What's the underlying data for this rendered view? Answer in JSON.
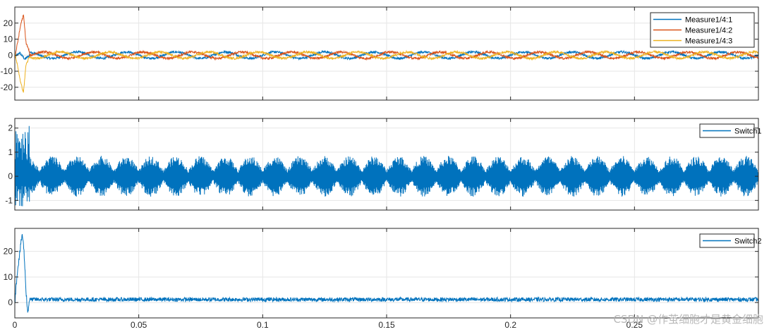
{
  "watermark": "CSDN @作茧细胞才是黄金细胞",
  "chart_data": [
    {
      "type": "line",
      "title": "",
      "xlabel": "",
      "ylabel": "",
      "xlim": [
        0,
        0.3
      ],
      "ylim": [
        -28,
        30
      ],
      "x_ticks": [
        0,
        0.05,
        0.1,
        0.15,
        0.2,
        0.25
      ],
      "x_tick_labels": [],
      "y_ticks": [
        -20,
        -10,
        0,
        10,
        20
      ],
      "y_tick_labels": [
        "-20",
        "-10",
        "0",
        "10",
        "20"
      ],
      "grid": true,
      "legend_position": "top-right",
      "series": [
        {
          "name": "Measure1/4:1",
          "color": "#0072BD",
          "steady": {
            "shape": "sine",
            "amplitude": 2,
            "frequency_hz": 50,
            "phase_deg": 0
          },
          "transient": {
            "t_end": 0.006,
            "x": [
              0,
              0.002,
              0.004,
              0.006
            ],
            "y": [
              -1,
              1.5,
              -2.5,
              0
            ]
          }
        },
        {
          "name": "Measure1/4:2",
          "color": "#D95319",
          "steady": {
            "shape": "sine",
            "amplitude": 2,
            "frequency_hz": 50,
            "phase_deg": 240
          },
          "transient": {
            "t_end": 0.006,
            "x": [
              0,
              0.0025,
              0.0035,
              0.0045,
              0.006
            ],
            "y": [
              -2,
              20,
              25,
              8,
              1.5
            ]
          }
        },
        {
          "name": "Measure1/4:3",
          "color": "#EDB120",
          "steady": {
            "shape": "sine",
            "amplitude": 2,
            "frequency_hz": 50,
            "phase_deg": 120
          },
          "transient": {
            "t_end": 0.006,
            "x": [
              0,
              0.0025,
              0.0035,
              0.0045,
              0.006
            ],
            "y": [
              2,
              -18,
              -23,
              -6,
              -1
            ]
          }
        }
      ]
    },
    {
      "type": "line",
      "title": "",
      "xlabel": "",
      "ylabel": "",
      "xlim": [
        0,
        0.3
      ],
      "ylim": [
        -1.4,
        2.4
      ],
      "x_ticks": [
        0,
        0.05,
        0.1,
        0.15,
        0.2,
        0.25
      ],
      "x_tick_labels": [],
      "y_ticks": [
        -1,
        0,
        1,
        2
      ],
      "y_tick_labels": [
        "-1",
        "0",
        "1",
        "2"
      ],
      "grid": true,
      "legend_position": "top-right",
      "series": [
        {
          "name": "Switch1",
          "color": "#0072BD",
          "steady": {
            "shape": "beat_envelope",
            "carrier_hz": 5000,
            "envelope_period_s": 0.01,
            "peak": 0.85,
            "trough": 0.25
          },
          "transient": {
            "t_end": 0.006,
            "peak": 2.2,
            "trough": -1.25
          }
        }
      ]
    },
    {
      "type": "line",
      "title": "",
      "xlabel": "",
      "ylabel": "",
      "xlim": [
        0,
        0.3
      ],
      "ylim": [
        -6,
        29
      ],
      "x_ticks": [
        0,
        0.05,
        0.1,
        0.15,
        0.2,
        0.25
      ],
      "x_tick_labels": [
        "0",
        "0.05",
        "0.1",
        "0.15",
        "0.2",
        "0.25"
      ],
      "y_ticks": [
        0,
        10,
        20
      ],
      "y_tick_labels": [
        "0",
        "10",
        "20"
      ],
      "grid": true,
      "legend_position": "top-right",
      "series": [
        {
          "name": "Switch2",
          "color": "#0072BD",
          "steady": {
            "shape": "noise_band",
            "center": 1.2,
            "band": 1.6
          },
          "transient": {
            "t_end": 0.006,
            "x": [
              0,
              0.001,
              0.003,
              0.0037,
              0.0045,
              0.0052,
              0.006
            ],
            "y": [
              0,
              12,
              27,
              20,
              5,
              -4,
              2
            ]
          }
        }
      ]
    }
  ]
}
